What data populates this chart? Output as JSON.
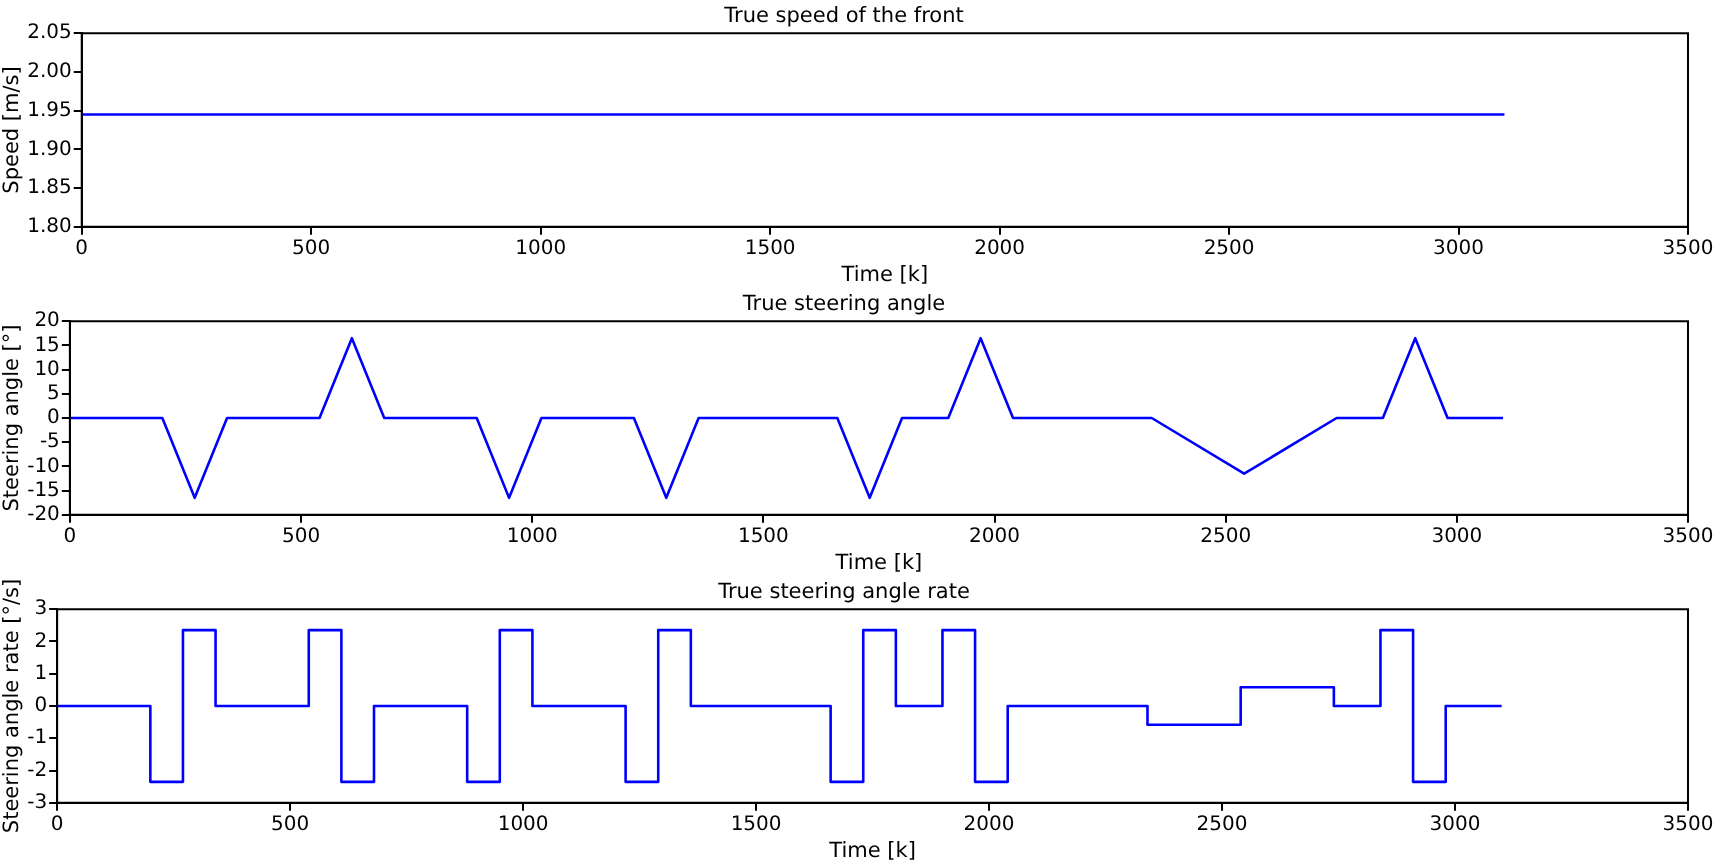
{
  "chart_data": [
    {
      "type": "line",
      "title": "True speed of the front",
      "xlabel": "Time [k]",
      "ylabel": "Speed [m/s]",
      "xlim": [
        0,
        3500
      ],
      "xticks": [
        0,
        500,
        1000,
        1500,
        2000,
        2500,
        3000,
        3500
      ],
      "ylim": [
        1.8,
        2.05
      ],
      "yticks": [
        {
          "value": 1.8,
          "label": "1.80"
        },
        {
          "value": 1.85,
          "label": "1.85"
        },
        {
          "value": 1.9,
          "label": "1.90"
        },
        {
          "value": 1.95,
          "label": "1.95"
        },
        {
          "value": 2.0,
          "label": "2.00"
        },
        {
          "value": 2.05,
          "label": "2.05"
        }
      ],
      "grid": false,
      "legend": false,
      "series": [
        {
          "color": "#0000ff",
          "x": [
            0,
            3100
          ],
          "values": [
            1.945,
            1.945
          ]
        }
      ]
    },
    {
      "type": "line",
      "title": "True steering angle",
      "xlabel": "Time [k]",
      "ylabel": "Steering angle [°]",
      "xlim": [
        0,
        3500
      ],
      "xticks": [
        0,
        500,
        1000,
        1500,
        2000,
        2500,
        3000,
        3500
      ],
      "ylim": [
        -20,
        20
      ],
      "yticks": [
        -20,
        -15,
        -10,
        -5,
        0,
        5,
        10,
        15,
        20
      ],
      "grid": false,
      "legend": false,
      "series": [
        {
          "color": "#0000ff",
          "x": [
            0,
            200,
            270,
            340,
            540,
            610,
            680,
            880,
            950,
            1020,
            1220,
            1290,
            1360,
            1660,
            1730,
            1800,
            1900,
            1970,
            2040,
            2340,
            2540,
            2740,
            2840,
            2910,
            2980,
            3100
          ],
          "values": [
            0,
            0,
            -16.5,
            0,
            0,
            16.5,
            0,
            0,
            -16.5,
            0,
            0,
            -16.5,
            0,
            0,
            -16.5,
            0,
            0,
            16.5,
            0,
            0,
            -11.5,
            0,
            0,
            16.5,
            0,
            0
          ]
        }
      ]
    },
    {
      "type": "line",
      "title": "True steering angle rate",
      "xlabel": "Time [k]",
      "ylabel": "Steering angle rate [°/s]",
      "xlim": [
        0,
        3500
      ],
      "xticks": [
        0,
        500,
        1000,
        1500,
        2000,
        2500,
        3000,
        3500
      ],
      "ylim": [
        -3,
        3
      ],
      "yticks": [
        -3,
        -2,
        -1,
        0,
        1,
        2,
        3
      ],
      "grid": false,
      "legend": false,
      "series": [
        {
          "color": "#0000ff",
          "x": [
            0,
            200,
            200,
            270,
            270,
            340,
            340,
            540,
            540,
            610,
            610,
            680,
            680,
            880,
            880,
            950,
            950,
            1020,
            1020,
            1220,
            1220,
            1290,
            1290,
            1360,
            1360,
            1660,
            1660,
            1730,
            1730,
            1800,
            1800,
            1900,
            1900,
            1970,
            1970,
            2040,
            2040,
            2340,
            2340,
            2540,
            2540,
            2740,
            2740,
            2840,
            2840,
            2910,
            2910,
            2980,
            2980,
            3100
          ],
          "values": [
            0,
            0,
            -2.35,
            -2.35,
            2.35,
            2.35,
            0,
            0,
            2.35,
            2.35,
            -2.35,
            -2.35,
            0,
            0,
            -2.35,
            -2.35,
            2.35,
            2.35,
            0,
            0,
            -2.35,
            -2.35,
            2.35,
            2.35,
            0,
            0,
            -2.35,
            -2.35,
            2.35,
            2.35,
            0,
            0,
            2.35,
            2.35,
            -2.35,
            -2.35,
            0,
            0,
            -0.58,
            -0.58,
            0.58,
            0.58,
            0,
            0,
            2.35,
            2.35,
            -2.35,
            -2.35,
            0,
            0
          ]
        }
      ]
    }
  ]
}
